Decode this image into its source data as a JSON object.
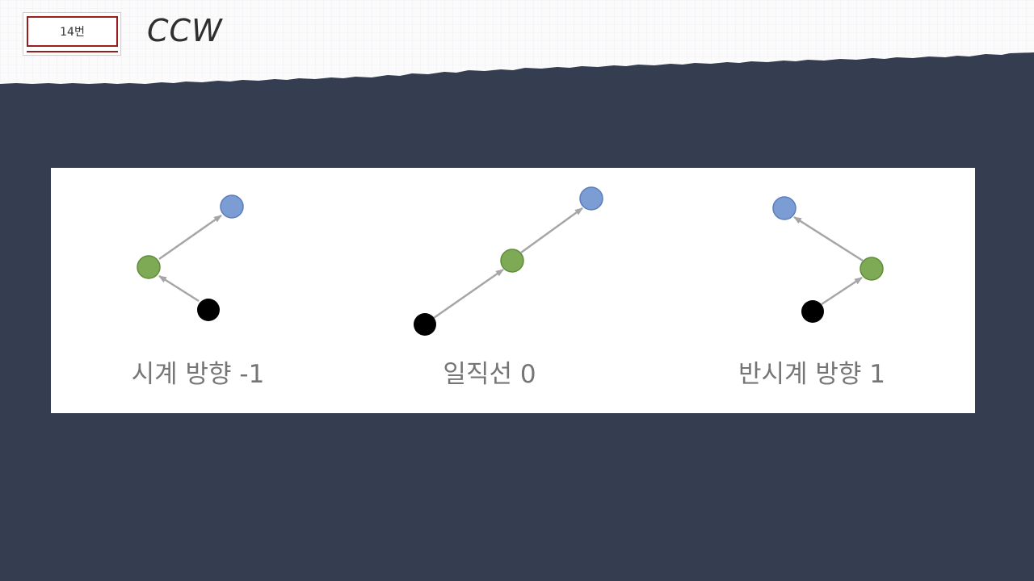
{
  "header": {
    "badge_label": "14번",
    "title": "CCW"
  },
  "colors": {
    "background": "#343e50",
    "paper": "#ffffff",
    "badge_border": "#9b1c1c",
    "arrow": "#a6a6a6",
    "node_start": "#000000",
    "node_middle": "#7faa55",
    "node_end": "#7b9dd4",
    "caption": "#757575"
  },
  "diagrams": [
    {
      "caption": "시계 방향 -1"
    },
    {
      "caption": "일직선 0"
    },
    {
      "caption": "반시계 방향 1"
    }
  ]
}
